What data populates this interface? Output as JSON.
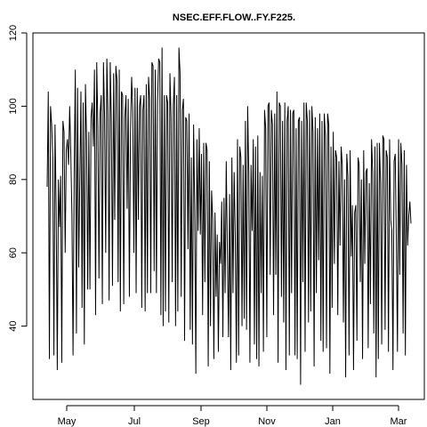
{
  "chart_data": {
    "type": "line",
    "title": "NSEC.EFF.FLOW..FY.F225.",
    "xlabel": "",
    "ylabel": "",
    "ylim": [
      20,
      120
    ],
    "y_ticks": [
      40,
      60,
      80,
      100,
      120
    ],
    "x_ticks": [
      "May",
      "Jul",
      "Sep",
      "Nov",
      "Jan",
      "Mar"
    ],
    "grid": false,
    "series": [
      {
        "values": [
          78,
          104,
          31,
          100,
          95,
          86,
          32,
          95,
          72,
          28,
          80,
          67,
          81,
          30,
          96,
          93,
          60,
          88,
          91,
          84,
          100,
          87,
          70,
          32,
          82,
          110,
          38,
          105,
          56,
          80,
          104,
          45,
          101,
          35,
          106,
          91,
          50,
          93,
          50,
          97,
          101,
          89,
          110,
          43,
          112,
          95,
          53,
          98,
          103,
          46,
          112,
          97,
          60,
          113,
          98,
          47,
          112,
          96,
          51,
          109,
          69,
          111,
          107,
          52,
          110,
          44,
          104,
          103,
          46,
          97,
          103,
          72,
          102,
          48,
          93,
          108,
          99,
          60,
          105,
          49,
          105,
          69,
          100,
          103,
          45,
          99,
          103,
          44,
          106,
          49,
          108,
          102,
          49,
          112,
          111,
          55,
          110,
          49,
          101,
          113,
          112,
          43,
          116,
          40,
          103,
          44,
          103,
          101,
          41,
          109,
          97,
          52,
          100,
          108,
          40,
          103,
          44,
          116,
          109,
          48,
          99,
          102,
          36,
          97,
          96,
          61,
          98,
          39,
          86,
          35,
          95,
          72,
          27,
          91,
          66,
          94,
          65,
          87,
          43,
          90,
          52,
          90,
          88,
          29,
          85,
          40,
          77,
          69,
          31,
          71,
          48,
          65,
          33,
          63,
          57,
          74,
          37,
          75,
          49,
          85,
          60,
          37,
          76,
          28,
          86,
          49,
          82,
          65,
          30,
          91,
          32,
          89,
          86,
          40,
          84,
          42,
          96,
          39,
          100,
          82,
          30,
          84,
          66,
          91,
          35,
          89,
          31,
          92,
          29,
          82,
          49,
          81,
          33,
          99,
          94,
          37,
          100,
          101,
          54,
          99,
          95,
          43,
          98,
          54,
          104,
          30,
          101,
          100,
          48,
          96,
          41,
          101,
          28,
          96,
          100,
          32,
          99,
          49,
          98,
          99,
          32,
          94,
          31,
          96,
          97,
          24,
          96,
          52,
          101,
          33,
          101,
          96,
          41,
          99,
          44,
          100,
          93,
          29,
          97,
          49,
          94,
          58,
          98,
          36,
          96,
          33,
          98,
          92,
          34,
          98,
          95,
          27,
          89,
          45,
          93,
          57,
          88,
          86,
          43,
          85,
          62,
          89,
          84,
          41,
          80,
          26,
          87,
          81,
          32,
          88,
          59,
          73,
          28,
          71,
          73,
          36,
          86,
          84,
          52,
          80,
          31,
          88,
          57,
          82,
          83,
          34,
          79,
          46,
          91,
          82,
          38,
          89,
          26,
          90,
          31,
          90,
          79,
          35,
          92,
          91,
          39,
          88,
          86,
          33,
          91,
          69,
          66,
          28,
          85,
          87,
          64,
          33,
          91,
          54,
          90,
          84,
          38,
          88,
          32,
          84,
          62,
          70,
          74,
          68
        ]
      }
    ]
  }
}
